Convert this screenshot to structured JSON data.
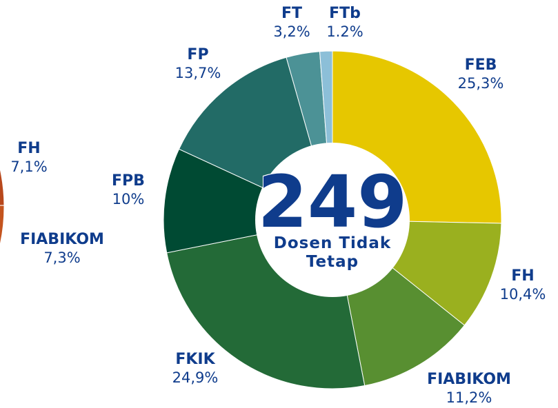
{
  "chart_data": [
    {
      "type": "donut",
      "total": 249,
      "center_label": "Dosen Tidak Tetap",
      "categories": [
        "FEB",
        "FH",
        "FIABIKOM",
        "FKIK",
        "FPB",
        "FP",
        "FT",
        "FTb"
      ],
      "values": [
        25.3,
        10.4,
        11.2,
        24.9,
        10,
        13.7,
        3.2,
        1.2
      ],
      "value_labels": [
        "25,3%",
        "10,4%",
        "11,2%",
        "24,9%",
        "10%",
        "13,7%",
        "3,2%",
        "1.2%"
      ],
      "colors": [
        "#e6c700",
        "#9ab01f",
        "#588f31",
        "#236a37",
        "#004a33",
        "#226b66",
        "#4c9296",
        "#8cbfd8"
      ]
    },
    {
      "type": "pie",
      "categories": [
        "FH",
        "FIABIKOM"
      ],
      "values": [
        7.1,
        7.3
      ],
      "value_labels": [
        "7,1%",
        "7,3%"
      ],
      "colors": [
        "#b8481c",
        "#c4541e"
      ]
    }
  ]
}
